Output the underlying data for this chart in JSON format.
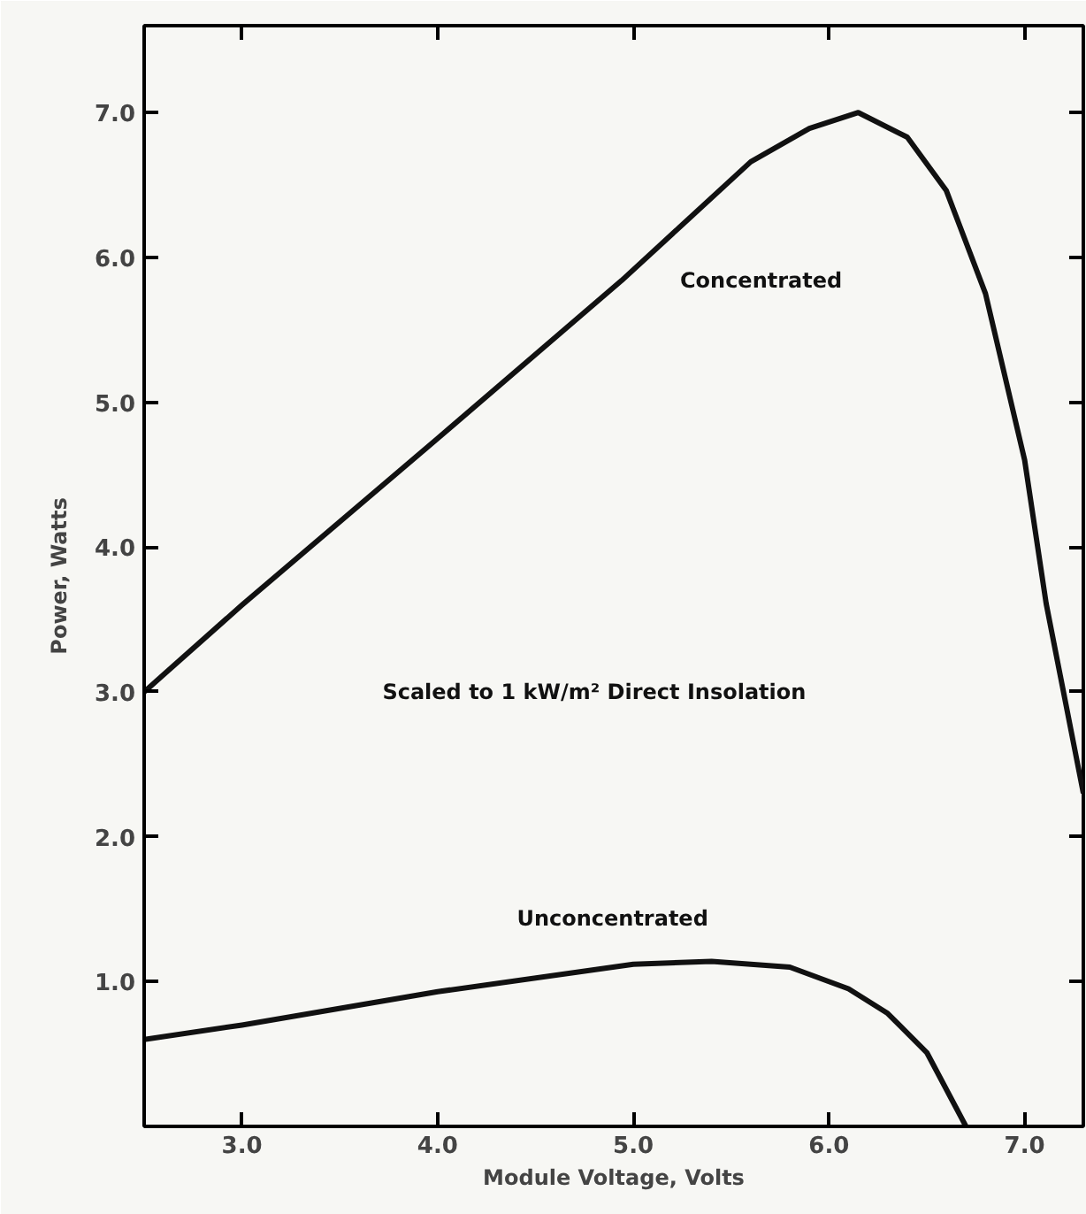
{
  "chart_data": {
    "type": "line",
    "xlabel": "Module Voltage, Volts",
    "ylabel": "Power, Watts",
    "annotations": [
      "Scaled to 1 kW/m² Direct Insolation"
    ],
    "series": [
      {
        "name": "Concentrated",
        "color": "#111111",
        "x": [
          2.5,
          3.0,
          4.0,
          4.94,
          5.6,
          5.9,
          6.15,
          6.4,
          6.6,
          6.8,
          7.0,
          7.11,
          7.3
        ],
        "values": [
          3.0,
          3.6,
          4.75,
          5.84,
          6.66,
          6.89,
          7.0,
          6.83,
          6.46,
          5.75,
          4.6,
          3.61,
          2.3
        ]
      },
      {
        "name": "Unconcentrated",
        "color": "#111111",
        "x": [
          2.5,
          3.0,
          4.0,
          5.0,
          5.4,
          5.8,
          6.1,
          6.3,
          6.5,
          6.7
        ],
        "values": [
          0.6,
          0.7,
          0.93,
          1.12,
          1.14,
          1.1,
          0.95,
          0.78,
          0.51,
          0.0
        ]
      }
    ],
    "xlim": [
      2.5,
      7.3
    ],
    "ylim": [
      0,
      7.6
    ],
    "xticks": [
      {
        "value": 3,
        "label": "3.0"
      },
      {
        "value": 4,
        "label": "4.0"
      },
      {
        "value": 5,
        "label": "5.0"
      },
      {
        "value": 6,
        "label": "6.0"
      },
      {
        "value": 7,
        "label": "7.0"
      }
    ],
    "yticks": [
      {
        "value": 1,
        "label": "1.0"
      },
      {
        "value": 2,
        "label": "2.0"
      },
      {
        "value": 3,
        "label": "3.0"
      },
      {
        "value": 4,
        "label": "4.0"
      },
      {
        "value": 5,
        "label": "5.0"
      },
      {
        "value": 6,
        "label": "6.0"
      },
      {
        "value": 7,
        "label": "7.0"
      }
    ],
    "grid": false,
    "legend": false,
    "marker": "none",
    "line_style": "solid"
  }
}
